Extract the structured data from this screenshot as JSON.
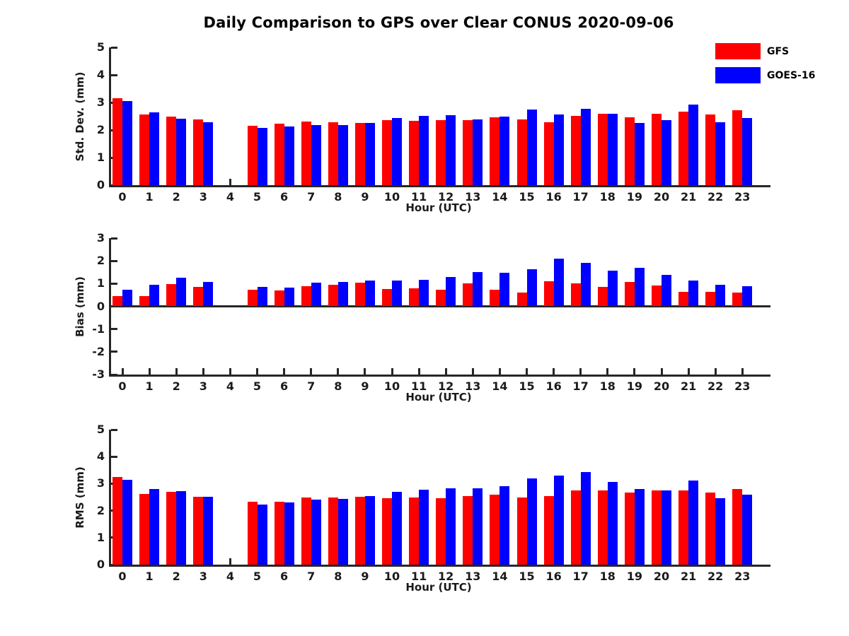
{
  "title": "Daily Comparison to GPS over Clear CONUS 2020-09-06",
  "legend": {
    "position": "top-right",
    "items": [
      {
        "label": "GFS",
        "color": "#ff0000"
      },
      {
        "label": "GOES-16",
        "color": "#0000ff"
      }
    ]
  },
  "colors": {
    "axis": "#262626",
    "gfs": "#ff0000",
    "goes16": "#0000ff"
  },
  "chart_data": [
    {
      "type": "bar",
      "panel": "stddev",
      "ylabel": "Std. Dev. (mm)",
      "xlabel": "Hour (UTC)",
      "ylim": [
        0,
        5
      ],
      "yticks": [
        0,
        1,
        2,
        3,
        4,
        5
      ],
      "grid": false,
      "missing_hours": [
        4
      ],
      "categories": [
        "0",
        "1",
        "2",
        "3",
        "4",
        "5",
        "6",
        "7",
        "8",
        "9",
        "10",
        "11",
        "12",
        "13",
        "14",
        "15",
        "16",
        "17",
        "18",
        "19",
        "20",
        "21",
        "22",
        "23"
      ],
      "series": [
        {
          "name": "GFS",
          "color": "#ff0000",
          "values": [
            3.15,
            2.57,
            2.48,
            2.38,
            null,
            2.15,
            2.22,
            2.32,
            2.28,
            2.25,
            2.35,
            2.33,
            2.35,
            2.35,
            2.45,
            2.39,
            2.27,
            2.52,
            2.59,
            2.45,
            2.59,
            2.67,
            2.56,
            2.72
          ]
        },
        {
          "name": "GOES-16",
          "color": "#0000ff",
          "values": [
            3.05,
            2.63,
            2.42,
            2.28,
            null,
            2.07,
            2.13,
            2.18,
            2.18,
            2.25,
            2.44,
            2.52,
            2.55,
            2.39,
            2.5,
            2.74,
            2.56,
            2.78,
            2.59,
            2.25,
            2.37,
            2.92,
            2.29,
            2.44
          ]
        }
      ]
    },
    {
      "type": "bar",
      "panel": "bias",
      "ylabel": "Bias (mm)",
      "xlabel": "Hour (UTC)",
      "ylim": [
        -3,
        3
      ],
      "yticks": [
        -3,
        -2,
        -1,
        0,
        1,
        2,
        3
      ],
      "grid": false,
      "missing_hours": [
        4
      ],
      "categories": [
        "0",
        "1",
        "2",
        "3",
        "4",
        "5",
        "6",
        "7",
        "8",
        "9",
        "10",
        "11",
        "12",
        "13",
        "14",
        "15",
        "16",
        "17",
        "18",
        "19",
        "20",
        "21",
        "22",
        "23"
      ],
      "series": [
        {
          "name": "GFS",
          "color": "#ff0000",
          "values": [
            0.45,
            0.45,
            0.98,
            0.85,
            null,
            0.74,
            0.69,
            0.9,
            0.96,
            1.04,
            0.77,
            0.8,
            0.74,
            1.0,
            0.72,
            0.61,
            1.1,
            1.0,
            0.85,
            1.08,
            0.92,
            0.64,
            0.64,
            0.6
          ]
        },
        {
          "name": "GOES-16",
          "color": "#0000ff",
          "values": [
            0.74,
            0.94,
            1.27,
            1.08,
            null,
            0.87,
            0.83,
            1.05,
            1.06,
            1.12,
            1.12,
            1.17,
            1.3,
            1.5,
            1.49,
            1.62,
            2.1,
            1.92,
            1.58,
            1.7,
            1.38,
            1.13,
            0.95,
            0.88
          ]
        }
      ]
    },
    {
      "type": "bar",
      "panel": "rms",
      "ylabel": "RMS (mm)",
      "xlabel": "Hour (UTC)",
      "ylim": [
        0,
        5
      ],
      "yticks": [
        0,
        1,
        2,
        3,
        4,
        5
      ],
      "grid": false,
      "missing_hours": [
        4
      ],
      "categories": [
        "0",
        "1",
        "2",
        "3",
        "4",
        "5",
        "6",
        "7",
        "8",
        "9",
        "10",
        "11",
        "12",
        "13",
        "14",
        "15",
        "16",
        "17",
        "18",
        "19",
        "20",
        "21",
        "22",
        "23"
      ],
      "series": [
        {
          "name": "GFS",
          "color": "#ff0000",
          "values": [
            3.25,
            2.62,
            2.7,
            2.52,
            null,
            2.32,
            2.32,
            2.5,
            2.48,
            2.51,
            2.47,
            2.49,
            2.45,
            2.53,
            2.58,
            2.48,
            2.54,
            2.74,
            2.74,
            2.67,
            2.74,
            2.74,
            2.66,
            2.8
          ]
        },
        {
          "name": "GOES-16",
          "color": "#0000ff",
          "values": [
            3.13,
            2.8,
            2.73,
            2.52,
            null,
            2.23,
            2.3,
            2.41,
            2.43,
            2.54,
            2.7,
            2.77,
            2.84,
            2.82,
            2.91,
            3.19,
            3.3,
            3.42,
            3.05,
            2.8,
            2.74,
            3.12,
            2.45,
            2.6
          ]
        }
      ]
    }
  ]
}
